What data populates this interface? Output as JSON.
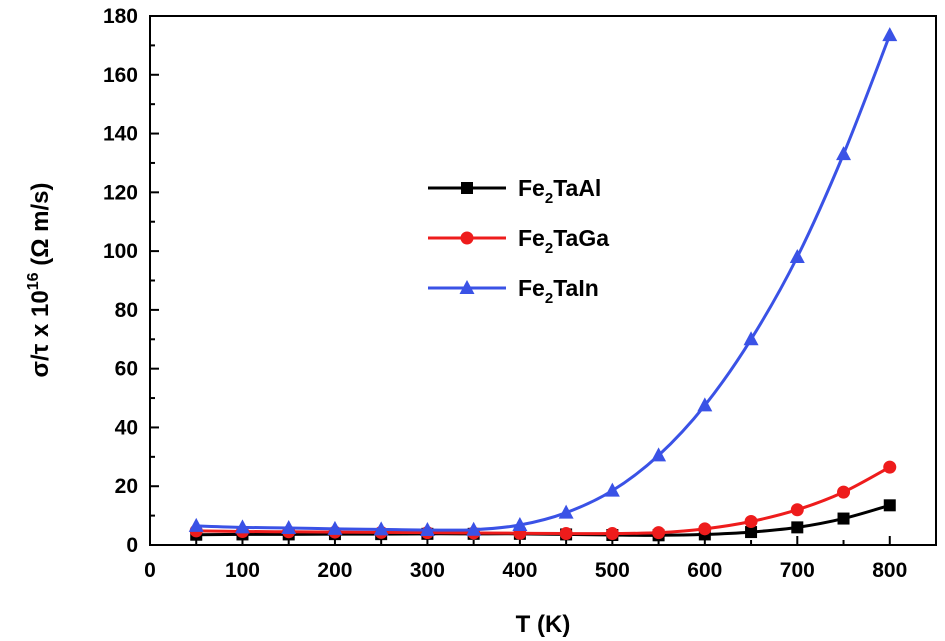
{
  "chart_data": {
    "type": "line",
    "xlabel": "T (K)",
    "ylabel": {
      "main": "σ/τ x 10",
      "sup": "16",
      "unit": " (Ω m/s)"
    },
    "xlim": [
      0,
      850
    ],
    "ylim": [
      0,
      180
    ],
    "xticks": [
      0,
      100,
      200,
      300,
      400,
      500,
      600,
      700,
      800
    ],
    "yticks": [
      0,
      20,
      40,
      60,
      80,
      100,
      120,
      140,
      160,
      180
    ],
    "grid": false,
    "legend_position": "center-left",
    "x": [
      50,
      100,
      150,
      200,
      250,
      300,
      350,
      400,
      450,
      500,
      550,
      600,
      650,
      700,
      750,
      800
    ],
    "series": [
      {
        "name": "Fe2TaAl",
        "legend": {
          "base": "Fe",
          "sub": "2",
          "rest": "TaAl"
        },
        "color": "#000000",
        "marker": "square",
        "values": [
          3.5,
          3.6,
          3.6,
          3.7,
          3.7,
          3.8,
          3.8,
          3.8,
          3.6,
          3.4,
          3.3,
          3.6,
          4.4,
          6.0,
          9.0,
          13.5
        ]
      },
      {
        "name": "Fe2TaGa",
        "legend": {
          "base": "Fe",
          "sub": "2",
          "rest": "TaGa"
        },
        "color": "#ee1c1c",
        "marker": "circle",
        "values": [
          4.8,
          4.6,
          4.5,
          4.4,
          4.3,
          4.2,
          4.1,
          4.0,
          3.9,
          3.9,
          4.2,
          5.5,
          8.0,
          12.0,
          18.0,
          26.5
        ]
      },
      {
        "name": "Fe2TaIn",
        "legend": {
          "base": "Fe",
          "sub": "2",
          "rest": "TaIn"
        },
        "color": "#3a52e6",
        "marker": "triangle",
        "values": [
          6.5,
          6.0,
          5.8,
          5.5,
          5.3,
          5.1,
          5.2,
          6.8,
          11.0,
          18.5,
          30.5,
          47.5,
          70.0,
          98.0,
          133.0,
          173.5
        ]
      }
    ]
  }
}
